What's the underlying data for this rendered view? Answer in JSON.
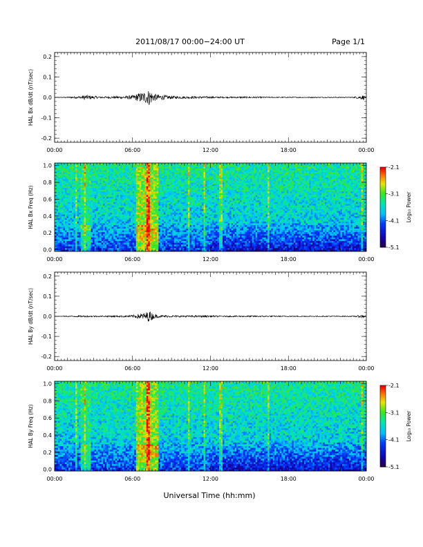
{
  "header": {
    "title": "2011/08/17  00:00−24:00 UT",
    "page": "Page 1/1"
  },
  "xaxis": {
    "label": "Universal Time (hh:mm)",
    "ticks": [
      "00:00",
      "06:00",
      "12:00",
      "18:00",
      "00:00"
    ],
    "range_hours": [
      0,
      24
    ]
  },
  "colorbar": {
    "label": "Log₁₀ Power",
    "ticks": [
      "-2.1",
      "-3.1",
      "-4.1",
      "-5.1"
    ],
    "range": [
      -5.1,
      -2.1
    ]
  },
  "chart_data": [
    {
      "type": "line",
      "title": "",
      "ylabel": "HAL Bx dB/dt (nT/sec)",
      "xlabel": "",
      "ylim": [
        -0.22,
        0.22
      ],
      "yticks": [
        "0.2",
        "0.1",
        "0.0",
        "-0.1",
        "-0.2"
      ],
      "x_tick_labels": [
        "00:00",
        "06:00",
        "12:00",
        "18:00",
        "00:00"
      ],
      "series": [
        {
          "x": [
            0,
            1,
            2.0,
            2.3,
            3.5,
            5.0,
            6.0,
            6.5,
            6.9,
            7.1,
            7.3,
            7.6,
            8.0,
            8.5,
            9.5,
            10.5,
            11.5,
            13,
            15,
            16,
            17,
            19,
            21,
            23.0,
            23.8,
            24
          ],
          "y": [
            0.0,
            0.003,
            0.006,
            0.012,
            0.004,
            0.006,
            0.01,
            0.022,
            0.028,
            0.03,
            0.042,
            0.02,
            0.014,
            0.01,
            0.006,
            0.006,
            0.005,
            0.003,
            0.004,
            0.003,
            0.002,
            0.002,
            0.002,
            0.002,
            0.012,
            0.0
          ]
        }
      ]
    },
    {
      "type": "heatmap",
      "title": "",
      "ylabel": "HAL Bx Freq (Hz)",
      "xlabel": "",
      "ylim": [
        0.0,
        1.0
      ],
      "yticks": [
        "1.0",
        "0.8",
        "0.6",
        "0.4",
        "0.2",
        "0.0"
      ],
      "x_tick_labels": [
        "00:00",
        "06:00",
        "12:00",
        "18:00",
        "00:00"
      ],
      "value_range": [
        -5.1,
        -2.1
      ],
      "peak_hours": [
        7.0,
        7.3
      ],
      "bright_bursts_hours": [
        1.7,
        2.3,
        7.2,
        10.3,
        11.5,
        12.8,
        16.5,
        23.7
      ]
    },
    {
      "type": "line",
      "title": "",
      "ylabel": "HAL By dB/dt (nT/sec)",
      "xlabel": "",
      "ylim": [
        -0.22,
        0.22
      ],
      "yticks": [
        "0.2",
        "0.1",
        "0.0",
        "-0.1",
        "-0.2"
      ],
      "x_tick_labels": [
        "00:00",
        "06:00",
        "12:00",
        "18:00",
        "00:00"
      ],
      "series": [
        {
          "x": [
            0,
            1,
            2.0,
            3.5,
            5.0,
            6.0,
            6.9,
            7.1,
            7.3,
            7.6,
            8.0,
            9.5,
            11.5,
            13,
            16,
            19,
            21,
            23.0,
            23.8,
            24
          ],
          "y": [
            0.0,
            0.002,
            0.004,
            0.003,
            0.004,
            0.006,
            0.018,
            0.022,
            0.028,
            0.014,
            0.006,
            0.004,
            0.005,
            0.003,
            0.003,
            0.002,
            0.002,
            0.002,
            0.008,
            0.0
          ]
        }
      ]
    },
    {
      "type": "heatmap",
      "title": "",
      "ylabel": "HAL By Freq (Hz)",
      "xlabel": "",
      "ylim": [
        0.0,
        1.0
      ],
      "yticks": [
        "1.0",
        "0.8",
        "0.6",
        "0.4",
        "0.2",
        "0.0"
      ],
      "x_tick_labels": [
        "00:00",
        "06:00",
        "12:00",
        "18:00",
        "00:00"
      ],
      "value_range": [
        -5.1,
        -2.1
      ],
      "peak_hours": [
        7.0,
        7.3
      ],
      "bright_bursts_hours": [
        1.7,
        2.3,
        7.2,
        10.3,
        11.5,
        12.8,
        16.5,
        23.7
      ]
    }
  ]
}
